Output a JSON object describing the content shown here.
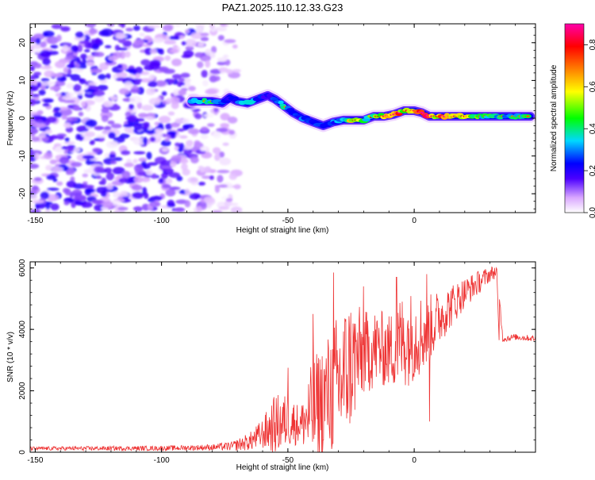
{
  "figure": {
    "title": "PAZ1.2025.110.12.33.G23",
    "background": "#ffffff"
  },
  "chart_data": [
    {
      "type": "heatmap",
      "xlabel": "Height of straight line (km)",
      "ylabel": "Frequency (Hz)",
      "xlim": [
        -152,
        48
      ],
      "ylim": [
        -25,
        25
      ],
      "x_ticks": [
        -150,
        -100,
        -50,
        0
      ],
      "y_ticks": [
        -20,
        -10,
        0,
        10,
        20
      ],
      "grid": false,
      "noise_region": {
        "x_from": -152,
        "x_to": -70,
        "max_amplitude": 0.25
      },
      "ridge": [
        {
          "x": -88,
          "y": 4.5,
          "v": 0.35
        },
        {
          "x": -84,
          "y": 4.5,
          "v": 0.5
        },
        {
          "x": -80,
          "y": 4.5,
          "v": 0.45
        },
        {
          "x": -76,
          "y": 4.0,
          "v": 0.35
        },
        {
          "x": -73,
          "y": 5.5,
          "v": 0.25
        },
        {
          "x": -70,
          "y": 4.5,
          "v": 0.35
        },
        {
          "x": -66,
          "y": 4.0,
          "v": 0.45
        },
        {
          "x": -62,
          "y": 5.0,
          "v": 0.35
        },
        {
          "x": -58,
          "y": 6.0,
          "v": 0.25
        },
        {
          "x": -55,
          "y": 5.0,
          "v": 0.35
        },
        {
          "x": -52,
          "y": 3.5,
          "v": 0.45
        },
        {
          "x": -48,
          "y": 1.5,
          "v": 0.3
        },
        {
          "x": -44,
          "y": 0.0,
          "v": 0.35
        },
        {
          "x": -40,
          "y": -1.0,
          "v": 0.35
        },
        {
          "x": -36,
          "y": -2.0,
          "v": 0.3
        },
        {
          "x": -32,
          "y": -1.0,
          "v": 0.35
        },
        {
          "x": -28,
          "y": -0.5,
          "v": 0.4
        },
        {
          "x": -24,
          "y": -0.5,
          "v": 0.7
        },
        {
          "x": -20,
          "y": -0.5,
          "v": 0.5
        },
        {
          "x": -16,
          "y": 0.5,
          "v": 0.55
        },
        {
          "x": -12,
          "y": 0.5,
          "v": 0.65
        },
        {
          "x": -8,
          "y": 1.0,
          "v": 0.85
        },
        {
          "x": -4,
          "y": 2.0,
          "v": 0.6
        },
        {
          "x": 0,
          "y": 2.0,
          "v": 0.8
        },
        {
          "x": 3,
          "y": 1.5,
          "v": 0.85
        },
        {
          "x": 6,
          "y": 0.5,
          "v": 0.75
        },
        {
          "x": 10,
          "y": 0.5,
          "v": 0.7
        },
        {
          "x": 14,
          "y": 0.5,
          "v": 0.75
        },
        {
          "x": 18,
          "y": 0.5,
          "v": 0.6
        },
        {
          "x": 22,
          "y": 0.5,
          "v": 0.55
        },
        {
          "x": 26,
          "y": 0.5,
          "v": 0.5
        },
        {
          "x": 30,
          "y": 0.5,
          "v": 0.5
        },
        {
          "x": 34,
          "y": 0.5,
          "v": 0.45
        },
        {
          "x": 38,
          "y": 0.5,
          "v": 0.45
        },
        {
          "x": 42,
          "y": 0.5,
          "v": 0.45
        },
        {
          "x": 46,
          "y": 0.5,
          "v": 0.45
        }
      ],
      "colorbar": {
        "label": "Normalized spectral amplitude",
        "range": [
          0,
          0.9
        ],
        "ticks": [
          0,
          0.2,
          0.4,
          0.6,
          0.8
        ],
        "stops": [
          "#ffffff",
          "#d9a6ff",
          "#4b00ff",
          "#0000ff",
          "#00d8ff",
          "#00ff00",
          "#ffff00",
          "#ff7f00",
          "#ff0000",
          "#ff00aa"
        ]
      }
    },
    {
      "type": "line",
      "xlabel": "Height of straight line (km)",
      "ylabel": "SNR (10 * v/v)",
      "xlim": [
        -152,
        48
      ],
      "ylim": [
        0,
        6200
      ],
      "x_ticks": [
        -150,
        -100,
        -50,
        0
      ],
      "y_ticks": [
        0,
        2000,
        4000,
        6000
      ],
      "grid": false,
      "color": "#ee3333",
      "envelope_x": [
        -152,
        -100,
        -80,
        -72,
        -65,
        -60,
        -55,
        -50,
        -45,
        -40,
        -35,
        -30,
        -25,
        -20,
        -15,
        -10,
        -5,
        0,
        5,
        10,
        15,
        20,
        25,
        30,
        33,
        35,
        40,
        48
      ],
      "envelope_mean": [
        120,
        130,
        160,
        200,
        350,
        600,
        900,
        1000,
        900,
        1300,
        1800,
        2200,
        2900,
        3200,
        3400,
        3300,
        3600,
        3800,
        3900,
        4400,
        4800,
        5200,
        5500,
        5800,
        5900,
        3700,
        3750,
        3700
      ],
      "envelope_amp": [
        60,
        80,
        100,
        150,
        300,
        500,
        1000,
        900,
        600,
        1800,
        1900,
        2400,
        2200,
        1400,
        1300,
        1200,
        1600,
        1500,
        1200,
        900,
        700,
        500,
        400,
        250,
        200,
        120,
        100,
        100
      ],
      "spikes": [
        {
          "x": -32,
          "y": 5850
        },
        {
          "x": -20,
          "y": 5400
        },
        {
          "x": -7,
          "y": 5700
        },
        {
          "x": 5,
          "y": 5800
        },
        {
          "x": 6,
          "y": 1000
        },
        {
          "x": -40,
          "y": 4500
        },
        {
          "x": -50,
          "y": 2750
        },
        {
          "x": -36,
          "y": 400
        }
      ]
    }
  ]
}
